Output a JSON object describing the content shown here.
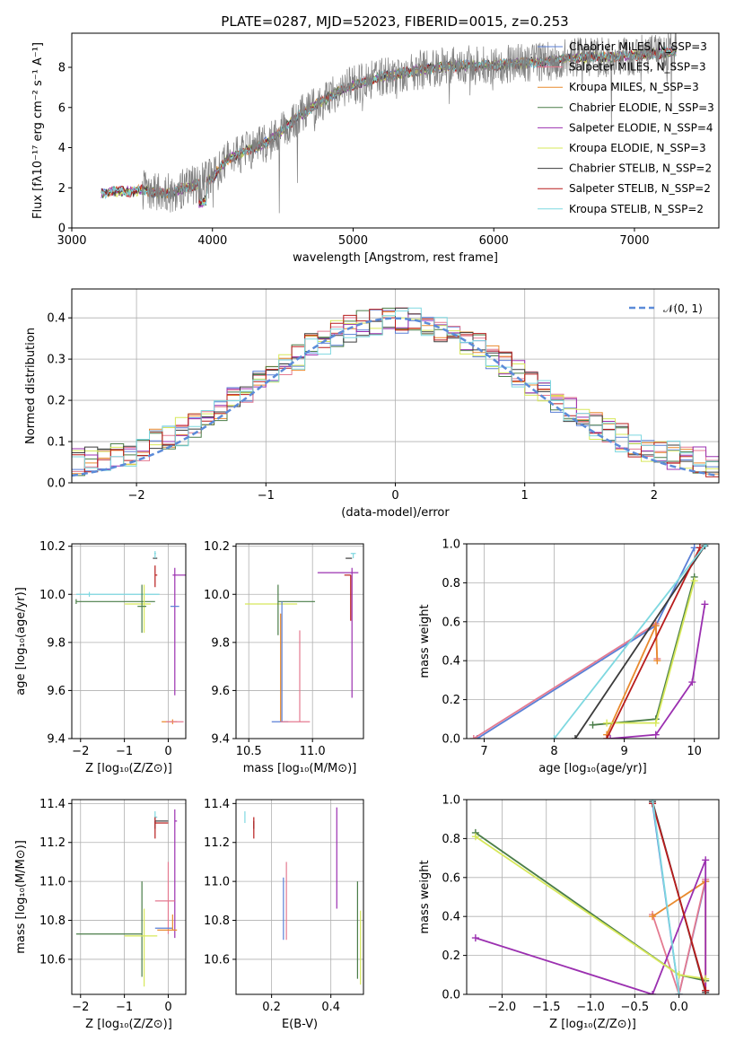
{
  "figure": {
    "title": "PLATE=0287, MJD=52023, FIBERID=0015, z=0.253"
  },
  "colors": {
    "Chabrier MILES": "#5a7fd6",
    "Salpeter MILES": "#e47a90",
    "Kroupa MILES": "#e98a2e",
    "Chabrier ELODIE": "#4a7d48",
    "Salpeter ELODIE": "#9b30b0",
    "Kroupa ELODIE": "#d7e85a",
    "Chabrier STELIB": "#3b3b3b",
    "Salpeter STELIB": "#b81c1c",
    "Kroupa STELIB": "#7ed8e0",
    "data": "#808080",
    "gaussian": "#5b8bd8"
  },
  "chart_data": [
    {
      "id": "spectrum",
      "type": "line",
      "title": "PLATE=0287, MJD=52023, FIBERID=0015, z=0.253",
      "xlabel": "wavelength [Angstrom, rest frame]",
      "ylabel": "Flux [fλ10⁻¹⁷ erg cm⁻² s⁻¹ A⁻¹]",
      "xlim": [
        3000,
        7600
      ],
      "ylim": [
        0,
        9.7
      ],
      "xticks": [
        3000,
        4000,
        5000,
        6000,
        7000
      ],
      "yticks": [
        0,
        2,
        4,
        6,
        8
      ],
      "grid": false,
      "legend_position": "top-right",
      "legend": [
        {
          "model": "Chabrier MILES",
          "label": "Chabrier MILES, N_SSP=3"
        },
        {
          "model": "Salpeter MILES",
          "label": "Salpeter MILES, N_SSP=3"
        },
        {
          "model": "Kroupa MILES",
          "label": "Kroupa MILES, N_SSP=3"
        },
        {
          "model": "Chabrier ELODIE",
          "label": "Chabrier ELODIE, N_SSP=3"
        },
        {
          "model": "Salpeter ELODIE",
          "label": "Salpeter ELODIE, N_SSP=4"
        },
        {
          "model": "Kroupa ELODIE",
          "label": "Kroupa ELODIE, N_SSP=3"
        },
        {
          "model": "Chabrier STELIB",
          "label": "Chabrier STELIB, N_SSP=2"
        },
        {
          "model": "Salpeter STELIB",
          "label": "Salpeter STELIB, N_SSP=2"
        },
        {
          "model": "Kroupa STELIB",
          "label": "Kroupa STELIB, N_SSP=2"
        }
      ],
      "continuum": {
        "x": [
          3200,
          3300,
          3400,
          3500,
          3600,
          3700,
          3800,
          3900,
          4000,
          4100,
          4200,
          4300,
          4400,
          4500,
          4600,
          4700,
          4800,
          4900,
          5000,
          5200,
          5400,
          5600,
          5800,
          6000,
          6200,
          6400,
          6600,
          6800,
          7000,
          7200,
          7300
        ],
        "y": [
          1.7,
          1.85,
          1.8,
          1.9,
          1.75,
          1.75,
          2.0,
          2.2,
          2.5,
          3.4,
          3.7,
          4.0,
          4.3,
          4.9,
          5.5,
          6.0,
          6.4,
          6.8,
          7.1,
          7.5,
          7.8,
          8.0,
          8.1,
          8.1,
          8.2,
          8.3,
          8.5,
          8.5,
          8.6,
          8.7,
          8.8
        ]
      }
    },
    {
      "id": "residuals",
      "type": "line",
      "xlabel": "(data-model)/error",
      "ylabel": "Normed distribution",
      "xlim": [
        -2.5,
        2.5
      ],
      "ylim": [
        0,
        0.47
      ],
      "xticks": [
        -2,
        -1,
        0,
        1,
        2
      ],
      "yticks": [
        0.0,
        0.1,
        0.2,
        0.3,
        0.4
      ],
      "grid": true,
      "legend_position": "top-right",
      "legend": [
        {
          "label": "𝒩(0, 1)"
        }
      ],
      "gaussian": {
        "mean": 0,
        "sigma": 1
      }
    },
    {
      "id": "age-vs-Z",
      "type": "scatter",
      "xlabel": "Z [log₁₀(Z/Z⊙)]",
      "ylabel": "age  [log₁₀(age/yr)]",
      "xlim": [
        -2.2,
        0.4
      ],
      "ylim": [
        9.4,
        10.21
      ],
      "xticks": [
        -2,
        -1,
        0
      ],
      "yticks": [
        9.4,
        9.6,
        9.8,
        10.0,
        10.2
      ],
      "grid": true,
      "errorbars": [
        {
          "model": "Chabrier ELODIE",
          "x": -2.1,
          "xerr": [
            0,
            1.8
          ],
          "y": 9.97,
          "yerr": [
            0.01,
            0.01
          ]
        },
        {
          "model": "Kroupa STELIB",
          "x": -1.8,
          "xerr": [
            0.3,
            1.6
          ],
          "y": 10.0,
          "yerr": [
            0.01,
            0.01
          ]
        },
        {
          "model": "Kroupa ELODIE",
          "x": -0.55,
          "xerr": [
            0.45,
            0.15
          ],
          "y": 9.96,
          "yerr": [
            0.12,
            0.08
          ]
        },
        {
          "model": "Chabrier ELODIE",
          "x": -0.6,
          "xerr": [
            0.1,
            0.1
          ],
          "y": 9.95,
          "yerr": [
            0.11,
            0.09
          ]
        },
        {
          "model": "Chabrier STELIB",
          "x": -0.3,
          "xerr": [
            0.05,
            0.05
          ],
          "y": 10.15,
          "yerr": [
            0.0,
            0.0
          ]
        },
        {
          "model": "Salpeter STELIB",
          "x": -0.3,
          "xerr": [
            0.0,
            0.05
          ],
          "y": 10.08,
          "yerr": [
            0.05,
            0.04
          ]
        },
        {
          "model": "Kroupa STELIB",
          "x": -0.3,
          "xerr": [
            0.02,
            0.02
          ],
          "y": 10.17,
          "yerr": [
            0.02,
            0.01
          ]
        },
        {
          "model": "Salpeter ELODIE",
          "x": 0.15,
          "xerr": [
            0.05,
            0.25
          ],
          "y": 10.08,
          "yerr": [
            0.5,
            0.03
          ]
        },
        {
          "model": "Kroupa MILES",
          "x": 0.1,
          "xerr": [
            0.25,
            0.1
          ],
          "y": 9.47,
          "yerr": [
            0.01,
            0.01
          ]
        },
        {
          "model": "Salpeter MILES",
          "x": 0.15,
          "xerr": [
            0.2,
            0.2
          ],
          "y": 9.47,
          "yerr": [
            0.0,
            0.0
          ]
        },
        {
          "model": "Chabrier MILES",
          "x": 0.15,
          "xerr": [
            0.1,
            0.1
          ],
          "y": 9.95,
          "yerr": [
            0.0,
            0.0
          ]
        }
      ]
    },
    {
      "id": "age-vs-mass",
      "type": "scatter",
      "xlabel": "mass [log₁₀(M/M⊙)]",
      "ylabel": "",
      "xlim": [
        10.4,
        11.4
      ],
      "ylim": [
        9.4,
        10.21
      ],
      "xticks": [
        10.5,
        11.0
      ],
      "yticks": [
        9.4,
        9.6,
        9.8,
        10.0,
        10.2
      ],
      "grid": true,
      "errorbars": [
        {
          "model": "Kroupa ELODIE",
          "x": 10.73,
          "xerr": [
            0.26,
            0.15
          ],
          "y": 9.96,
          "yerr": [
            0.0,
            0.0
          ]
        },
        {
          "model": "Chabrier ELODIE",
          "x": 10.73,
          "xerr": [
            0.0,
            0.29
          ],
          "y": 9.97,
          "yerr": [
            0.14,
            0.07
          ]
        },
        {
          "model": "Kroupa MILES",
          "x": 10.75,
          "xerr": [
            0.0,
            0.0
          ],
          "y": 9.47,
          "yerr": [
            0.0,
            0.45
          ]
        },
        {
          "model": "Chabrier MILES",
          "x": 10.76,
          "xerr": [
            0.08,
            0.05
          ],
          "y": 9.47,
          "yerr": [
            0.0,
            0.5
          ]
        },
        {
          "model": "Salpeter MILES",
          "x": 10.9,
          "xerr": [
            0.15,
            0.08
          ],
          "y": 9.47,
          "yerr": [
            0.0,
            0.38
          ]
        },
        {
          "model": "Salpeter ELODIE",
          "x": 11.31,
          "xerr": [
            0.27,
            0.05
          ],
          "y": 10.09,
          "yerr": [
            0.52,
            0.02
          ]
        },
        {
          "model": "Chabrier STELIB",
          "x": 11.31,
          "xerr": [
            0.05,
            0.0
          ],
          "y": 10.15,
          "yerr": [
            0.0,
            0.0
          ]
        },
        {
          "model": "Salpeter STELIB",
          "x": 11.3,
          "xerr": [
            0.05,
            0.0
          ],
          "y": 10.08,
          "yerr": [
            0.19,
            0.0
          ]
        },
        {
          "model": "Kroupa STELIB",
          "x": 11.32,
          "xerr": [
            0.02,
            0.02
          ],
          "y": 10.17,
          "yerr": [
            0.02,
            0.0
          ]
        }
      ]
    },
    {
      "id": "weight-vs-age",
      "type": "line",
      "xlabel": "age  [log₁₀(age/yr)]",
      "ylabel": "mass weight",
      "xlim": [
        6.75,
        10.35
      ],
      "ylim": [
        0,
        1.0
      ],
      "xticks": [
        7,
        8,
        9,
        10
      ],
      "yticks": [
        0.0,
        0.2,
        0.4,
        0.6,
        0.8,
        1.0
      ],
      "grid": true,
      "series": [
        {
          "model": "Chabrier MILES",
          "x": [
            6.9,
            9.45,
            10.0
          ],
          "y": [
            0.0,
            0.58,
            0.98
          ]
        },
        {
          "model": "Salpeter MILES",
          "x": [
            6.85,
            9.45,
            9.47
          ],
          "y": [
            0.0,
            0.59,
            0.41
          ]
        },
        {
          "model": "Kroupa MILES",
          "x": [
            8.75,
            9.45,
            9.47
          ],
          "y": [
            0.02,
            0.58,
            0.4
          ]
        },
        {
          "model": "Chabrier ELODIE",
          "x": [
            8.55,
            9.45,
            10.0
          ],
          "y": [
            0.07,
            0.1,
            0.83
          ]
        },
        {
          "model": "Salpeter ELODIE",
          "x": [
            8.8,
            9.45,
            9.97,
            10.15
          ],
          "y": [
            0.0,
            0.02,
            0.29,
            0.69
          ]
        },
        {
          "model": "Kroupa ELODIE",
          "x": [
            8.75,
            9.45,
            10.0
          ],
          "y": [
            0.08,
            0.08,
            0.81
          ]
        },
        {
          "model": "Chabrier STELIB",
          "x": [
            8.3,
            10.15
          ],
          "y": [
            0.0,
            0.99
          ]
        },
        {
          "model": "Salpeter STELIB",
          "x": [
            8.75,
            10.08
          ],
          "y": [
            0.0,
            0.98
          ]
        },
        {
          "model": "Kroupa STELIB",
          "x": [
            8.0,
            10.17
          ],
          "y": [
            0.0,
            1.0
          ]
        }
      ]
    },
    {
      "id": "mass-vs-Z",
      "type": "scatter",
      "xlabel": "Z [log₁₀(Z/Z⊙)]",
      "ylabel": "mass [log₁₀(M/M⊙)]",
      "xlim": [
        -2.2,
        0.4
      ],
      "ylim": [
        10.42,
        11.42
      ],
      "xticks": [
        -2,
        -1,
        0
      ],
      "yticks": [
        10.6,
        10.8,
        11.0,
        11.2,
        11.4
      ],
      "grid": true,
      "errorbars": [
        {
          "model": "Chabrier ELODIE",
          "x": -0.6,
          "xerr": [
            1.5,
            0.0
          ],
          "y": 10.73,
          "yerr": [
            0.22,
            0.27
          ]
        },
        {
          "model": "Kroupa ELODIE",
          "x": -0.55,
          "xerr": [
            0.45,
            0.3
          ],
          "y": 10.72,
          "yerr": [
            0.26,
            0.14
          ]
        },
        {
          "model": "Kroupa STELIB",
          "x": -0.3,
          "xerr": [
            0.0,
            0.05
          ],
          "y": 11.33,
          "yerr": [
            0.03,
            0.03
          ]
        },
        {
          "model": "Chabrier STELIB",
          "x": -0.3,
          "xerr": [
            0.0,
            0.3
          ],
          "y": 11.31,
          "yerr": [
            0.04,
            0.0
          ]
        },
        {
          "model": "Salpeter STELIB",
          "x": -0.3,
          "xerr": [
            0.0,
            0.3
          ],
          "y": 11.3,
          "yerr": [
            0.08,
            0.03
          ]
        },
        {
          "model": "Salpeter ELODIE",
          "x": 0.15,
          "xerr": [
            0.0,
            0.05
          ],
          "y": 11.31,
          "yerr": [
            0.6,
            0.06
          ]
        },
        {
          "model": "Salpeter MILES",
          "x": 0.0,
          "xerr": [
            0.3,
            0.15
          ],
          "y": 10.9,
          "yerr": [
            0.17,
            0.2
          ]
        },
        {
          "model": "Chabrier MILES",
          "x": -0.3,
          "xerr": [
            0.0,
            0.4
          ],
          "y": 10.76,
          "yerr": [
            0.0,
            0.0
          ]
        },
        {
          "model": "Kroupa MILES",
          "x": 0.1,
          "xerr": [
            0.35,
            0.1
          ],
          "y": 10.75,
          "yerr": [
            0.0,
            0.08
          ]
        }
      ]
    },
    {
      "id": "mass-vs-EBV",
      "type": "scatter",
      "xlabel": "E(B-V)",
      "ylabel": "",
      "xlim": [
        0.08,
        0.51
      ],
      "ylim": [
        10.42,
        11.42
      ],
      "xticks": [
        0.2,
        0.4
      ],
      "yticks": [
        10.6,
        10.8,
        11.0,
        11.2,
        11.4
      ],
      "grid": true,
      "errorbars": [
        {
          "model": "Kroupa STELIB",
          "x": 0.11,
          "xerr": [
            0,
            0
          ],
          "y": 11.33,
          "yerr": [
            0.03,
            0.03
          ]
        },
        {
          "model": "Chabrier STELIB",
          "x": 0.14,
          "xerr": [
            0,
            0
          ],
          "y": 11.31,
          "yerr": [
            0.04,
            0.0
          ]
        },
        {
          "model": "Salpeter STELIB",
          "x": 0.14,
          "xerr": [
            0,
            0
          ],
          "y": 11.3,
          "yerr": [
            0.08,
            0.03
          ]
        },
        {
          "model": "Chabrier MILES",
          "x": 0.24,
          "xerr": [
            0,
            0
          ],
          "y": 10.85,
          "yerr": [
            0.15,
            0.17
          ]
        },
        {
          "model": "Salpeter MILES",
          "x": 0.25,
          "xerr": [
            0,
            0
          ],
          "y": 10.9,
          "yerr": [
            0.2,
            0.2
          ]
        },
        {
          "model": "Salpeter ELODIE",
          "x": 0.42,
          "xerr": [
            0,
            0
          ],
          "y": 11.1,
          "yerr": [
            0.24,
            0.28
          ]
        },
        {
          "model": "Chabrier ELODIE",
          "x": 0.49,
          "xerr": [
            0,
            0
          ],
          "y": 10.75,
          "yerr": [
            0.25,
            0.25
          ]
        },
        {
          "model": "Kroupa ELODIE",
          "x": 0.5,
          "xerr": [
            0,
            0
          ],
          "y": 10.65,
          "yerr": [
            0.18,
            0.2
          ]
        }
      ]
    },
    {
      "id": "weight-vs-Z",
      "type": "line",
      "xlabel": "Z [log₁₀(Z/Z⊙)]",
      "ylabel": "mass weight",
      "xlim": [
        -2.4,
        0.45
      ],
      "ylim": [
        0,
        1.0
      ],
      "xticks": [
        -2.0,
        -1.5,
        -1.0,
        -0.5,
        0.0
      ],
      "yticks": [
        0.0,
        0.2,
        0.4,
        0.6,
        0.8,
        1.0
      ],
      "grid": true,
      "series": [
        {
          "model": "Chabrier MILES",
          "x": [
            -0.3,
            0.0,
            0.3
          ],
          "y": [
            0.98,
            0.0,
            0.58
          ]
        },
        {
          "model": "Salpeter MILES",
          "x": [
            -0.3,
            0.0,
            0.3
          ],
          "y": [
            0.41,
            0.0,
            0.59
          ]
        },
        {
          "model": "Kroupa MILES",
          "x": [
            -0.3,
            0.3,
            0.3
          ],
          "y": [
            0.4,
            0.58,
            0.02
          ]
        },
        {
          "model": "Chabrier ELODIE",
          "x": [
            -2.3,
            0.0,
            0.3
          ],
          "y": [
            0.83,
            0.1,
            0.07
          ]
        },
        {
          "model": "Salpeter ELODIE",
          "x": [
            -2.3,
            -0.3,
            0.3,
            0.3
          ],
          "y": [
            0.29,
            0.0,
            0.69,
            0.02
          ]
        },
        {
          "model": "Kroupa ELODIE",
          "x": [
            -2.3,
            0.0,
            0.3
          ],
          "y": [
            0.81,
            0.1,
            0.08
          ]
        },
        {
          "model": "Chabrier STELIB",
          "x": [
            -0.3,
            0.3
          ],
          "y": [
            0.99,
            0.01
          ]
        },
        {
          "model": "Salpeter STELIB",
          "x": [
            -0.3,
            0.3
          ],
          "y": [
            0.98,
            0.02
          ]
        },
        {
          "model": "Kroupa STELIB",
          "x": [
            -0.3,
            0.0
          ],
          "y": [
            1.0,
            0.0
          ]
        }
      ]
    }
  ]
}
